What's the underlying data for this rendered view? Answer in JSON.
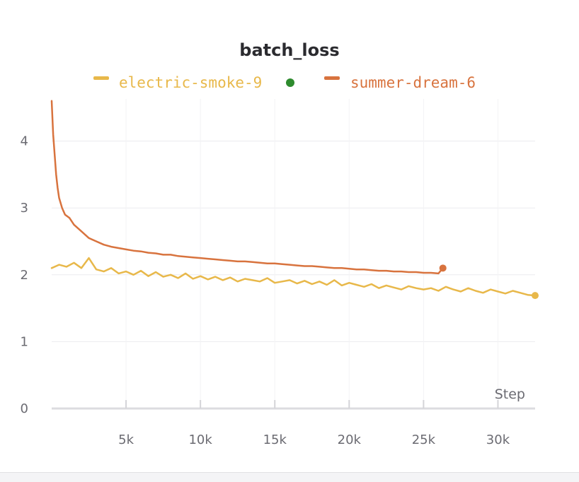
{
  "chart_data": {
    "type": "line",
    "title": "batch_loss",
    "xlabel": "Step",
    "ylabel": "",
    "xlim": [
      0,
      32500
    ],
    "ylim": [
      0,
      4.7
    ],
    "grid": true,
    "legend_position": "top-center",
    "x_ticks": [
      {
        "value": 5000,
        "label": "5k"
      },
      {
        "value": 10000,
        "label": "10k"
      },
      {
        "value": 15000,
        "label": "15k"
      },
      {
        "value": 20000,
        "label": "20k"
      },
      {
        "value": 25000,
        "label": "25k"
      },
      {
        "value": 30000,
        "label": "30k"
      }
    ],
    "y_ticks": [
      {
        "value": 0,
        "label": "0"
      },
      {
        "value": 1,
        "label": "1"
      },
      {
        "value": 2,
        "label": "2"
      },
      {
        "value": 3,
        "label": "3"
      },
      {
        "value": 4,
        "label": "4"
      }
    ],
    "series": [
      {
        "name": "electric-smoke-9",
        "color": "#e8b84a",
        "active": true,
        "active_color": "#2e8b2e",
        "x": [
          0,
          500,
          1000,
          1500,
          2000,
          2500,
          3000,
          3500,
          4000,
          4500,
          5000,
          5500,
          6000,
          6500,
          7000,
          7500,
          8000,
          8500,
          9000,
          9500,
          10000,
          10500,
          11000,
          11500,
          12000,
          12500,
          13000,
          13500,
          14000,
          14500,
          15000,
          15500,
          16000,
          16500,
          17000,
          17500,
          18000,
          18500,
          19000,
          19500,
          20000,
          20500,
          21000,
          21500,
          22000,
          22500,
          23000,
          23500,
          24000,
          24500,
          25000,
          25500,
          26000,
          26500,
          27000,
          27500,
          28000,
          28500,
          29000,
          29500,
          30000,
          30500,
          31000,
          31500,
          32000,
          32500
        ],
        "y": [
          2.1,
          2.15,
          2.12,
          2.18,
          2.1,
          2.25,
          2.08,
          2.05,
          2.1,
          2.02,
          2.05,
          2.0,
          2.06,
          1.98,
          2.04,
          1.97,
          2.0,
          1.95,
          2.02,
          1.94,
          1.98,
          1.93,
          1.97,
          1.92,
          1.96,
          1.9,
          1.94,
          1.92,
          1.9,
          1.95,
          1.88,
          1.9,
          1.92,
          1.87,
          1.91,
          1.86,
          1.9,
          1.85,
          1.92,
          1.84,
          1.88,
          1.85,
          1.82,
          1.86,
          1.8,
          1.84,
          1.81,
          1.78,
          1.83,
          1.8,
          1.78,
          1.8,
          1.76,
          1.82,
          1.78,
          1.75,
          1.8,
          1.76,
          1.73,
          1.78,
          1.75,
          1.72,
          1.76,
          1.73,
          1.7,
          1.69
        ]
      },
      {
        "name": "summer-dream-6",
        "color": "#d8733e",
        "x": [
          0,
          100,
          200,
          300,
          400,
          500,
          700,
          900,
          1200,
          1500,
          2000,
          2500,
          3000,
          3500,
          4000,
          4500,
          5000,
          5500,
          6000,
          6500,
          7000,
          7500,
          8000,
          8500,
          9000,
          9500,
          10000,
          10500,
          11000,
          11500,
          12000,
          12500,
          13000,
          13500,
          14000,
          14500,
          15000,
          15500,
          16000,
          16500,
          17000,
          17500,
          18000,
          18500,
          19000,
          19500,
          20000,
          20500,
          21000,
          21500,
          22000,
          22500,
          23000,
          23500,
          24000,
          24500,
          25000,
          25500,
          26000,
          26300
        ],
        "y": [
          4.6,
          4.1,
          3.8,
          3.5,
          3.3,
          3.15,
          3.0,
          2.9,
          2.85,
          2.75,
          2.65,
          2.55,
          2.5,
          2.45,
          2.42,
          2.4,
          2.38,
          2.36,
          2.35,
          2.33,
          2.32,
          2.3,
          2.3,
          2.28,
          2.27,
          2.26,
          2.25,
          2.24,
          2.23,
          2.22,
          2.21,
          2.2,
          2.2,
          2.19,
          2.18,
          2.17,
          2.17,
          2.16,
          2.15,
          2.14,
          2.13,
          2.13,
          2.12,
          2.11,
          2.1,
          2.1,
          2.09,
          2.08,
          2.08,
          2.07,
          2.06,
          2.06,
          2.05,
          2.05,
          2.04,
          2.04,
          2.03,
          2.03,
          2.02,
          2.1
        ]
      }
    ]
  }
}
